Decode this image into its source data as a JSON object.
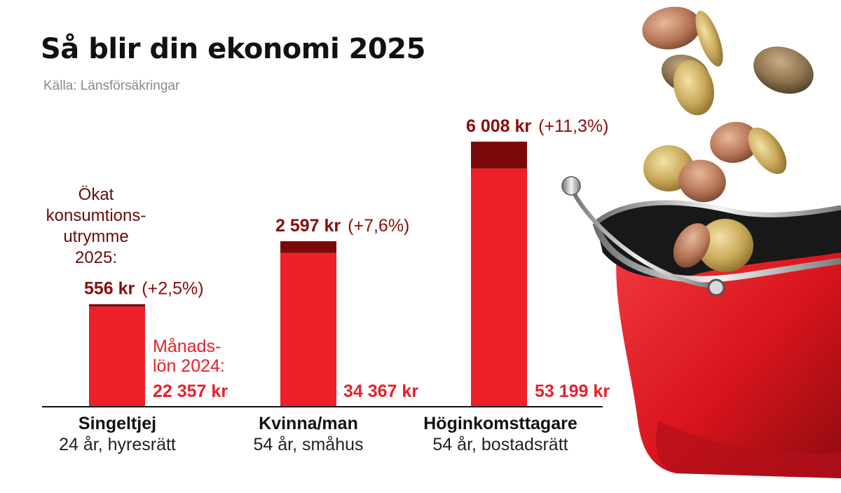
{
  "header": {
    "title": "Så blir din ekonomi 2025",
    "source": "Källa: Länsförsäkringar"
  },
  "annotations": {
    "increase_label": [
      "Ökat",
      "konsumtions-",
      "utrymme",
      "2025:"
    ],
    "salary_label": [
      "Månads-",
      "lön 2024:"
    ]
  },
  "colors": {
    "salary_bar": "#ee2029",
    "increase_bar": "#7a0a0a",
    "increase_text": "#8a0c0c",
    "salary_text": "#e8202a"
  },
  "chart_data": {
    "type": "bar",
    "stacked": true,
    "categories": [
      "Singeltjej",
      "Kvinna/man",
      "Höginkomsttagare"
    ],
    "category_details": [
      "24 år, hyresrätt",
      "54 år, småhus",
      "54 år, bostadsrätt"
    ],
    "series": [
      {
        "values": [
          22357,
          34367,
          53199
        ]
      },
      {
        "values": [
          556,
          2597,
          6008
        ]
      }
    ],
    "increase_labels": [
      "556 kr",
      "2 597 kr",
      "6 008 kr"
    ],
    "increase_percent_labels": [
      "(+2,5%)",
      "(+7,6%)",
      "(+11,3%)"
    ],
    "salary_labels": [
      "22 357 kr",
      "34 367 kr",
      "53 199 kr"
    ],
    "ylim": [
      0,
      60000
    ],
    "grid": false,
    "title": "Så blir din ekonomi 2025"
  }
}
